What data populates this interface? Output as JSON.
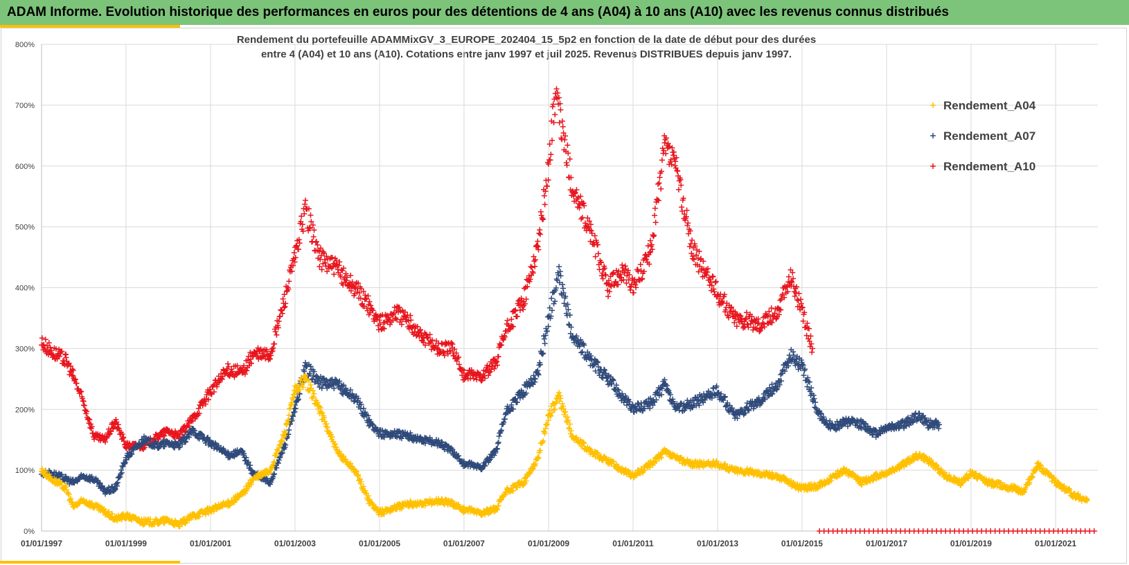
{
  "banner_title": "ADAM Informe. Evolution historique des performances en euros pour des détentions de 4 ans (A04) à 10 ans (A10) avec les revenus connus distribués",
  "colors": {
    "banner": "#7cc47a",
    "accent": "#ffc000",
    "A04": "#ffc000",
    "A07": "#2f4a7a",
    "A10": "#e8141c",
    "grid": "#d9d9d9"
  },
  "chart_data": {
    "type": "scatter",
    "title_line1": "Rendement du portefeuille ADAMMixGV_3_EUROPE_202404_15_5p2  en fonction de la date de début pour des durées",
    "title_line2": "entre 4 (A04) et 10 ans (A10). Cotations  entre janv 1997 et juil 2025. Revenus DISTRIBUES depuis janv 1997.",
    "xlabel": "",
    "ylabel": "",
    "ylim": [
      0,
      800
    ],
    "yticks": [
      0,
      100,
      200,
      300,
      400,
      500,
      600,
      700,
      800
    ],
    "ytick_labels": [
      "0%",
      "100%",
      "200%",
      "300%",
      "400%",
      "500%",
      "600%",
      "700%",
      "800%"
    ],
    "xlim": [
      "1997-01-01",
      "2022-01-01"
    ],
    "xtick_labels": [
      "01/01/1997",
      "01/01/1999",
      "01/01/2001",
      "01/01/2003",
      "01/01/2005",
      "01/01/2007",
      "01/01/2009",
      "01/01/2011",
      "01/01/2013",
      "01/01/2015",
      "01/01/2017",
      "01/01/2019",
      "01/01/2021"
    ],
    "grid": true,
    "legend_position": "top-right",
    "marker": "+",
    "series": [
      {
        "name": "Rendement_A04",
        "color": "#ffc000",
        "points": [
          [
            "1997-01-01",
            100
          ],
          [
            "1997-04-01",
            85
          ],
          [
            "1997-08-01",
            70
          ],
          [
            "1997-10-01",
            40
          ],
          [
            "1998-01-01",
            50
          ],
          [
            "1998-06-01",
            35
          ],
          [
            "1998-10-01",
            20
          ],
          [
            "1999-01-01",
            25
          ],
          [
            "1999-06-01",
            15
          ],
          [
            "1999-10-01",
            15
          ],
          [
            "2000-01-01",
            18
          ],
          [
            "2000-04-01",
            10
          ],
          [
            "2000-08-01",
            25
          ],
          [
            "2001-01-01",
            35
          ],
          [
            "2001-06-01",
            45
          ],
          [
            "2001-10-01",
            60
          ],
          [
            "2002-01-01",
            85
          ],
          [
            "2002-06-01",
            100
          ],
          [
            "2002-10-01",
            160
          ],
          [
            "2003-01-01",
            230
          ],
          [
            "2003-04-01",
            250
          ],
          [
            "2003-08-01",
            200
          ],
          [
            "2004-01-01",
            130
          ],
          [
            "2004-06-01",
            100
          ],
          [
            "2004-10-01",
            50
          ],
          [
            "2005-01-01",
            30
          ],
          [
            "2005-06-01",
            40
          ],
          [
            "2005-10-01",
            45
          ],
          [
            "2006-01-01",
            45
          ],
          [
            "2006-06-01",
            50
          ],
          [
            "2006-10-01",
            45
          ],
          [
            "2007-01-01",
            35
          ],
          [
            "2007-06-01",
            30
          ],
          [
            "2007-10-01",
            35
          ],
          [
            "2008-01-01",
            65
          ],
          [
            "2008-06-01",
            80
          ],
          [
            "2008-10-01",
            120
          ],
          [
            "2009-01-01",
            190
          ],
          [
            "2009-04-01",
            220
          ],
          [
            "2009-08-01",
            155
          ],
          [
            "2010-01-01",
            130
          ],
          [
            "2010-06-01",
            115
          ],
          [
            "2011-01-01",
            90
          ],
          [
            "2011-06-01",
            110
          ],
          [
            "2011-10-01",
            130
          ],
          [
            "2012-01-01",
            120
          ],
          [
            "2012-06-01",
            110
          ],
          [
            "2013-01-01",
            110
          ],
          [
            "2013-06-01",
            100
          ],
          [
            "2014-01-01",
            95
          ],
          [
            "2014-06-01",
            90
          ],
          [
            "2015-01-01",
            70
          ],
          [
            "2015-06-01",
            75
          ],
          [
            "2015-10-01",
            90
          ],
          [
            "2016-01-01",
            100
          ],
          [
            "2016-06-01",
            80
          ],
          [
            "2016-10-01",
            90
          ],
          [
            "2017-01-01",
            95
          ],
          [
            "2017-06-01",
            110
          ],
          [
            "2017-10-01",
            125
          ],
          [
            "2018-01-01",
            115
          ],
          [
            "2018-06-01",
            90
          ],
          [
            "2018-10-01",
            80
          ],
          [
            "2019-01-01",
            95
          ],
          [
            "2019-06-01",
            80
          ],
          [
            "2019-10-01",
            75
          ],
          [
            "2020-01-01",
            70
          ],
          [
            "2020-04-01",
            65
          ],
          [
            "2020-08-01",
            110
          ],
          [
            "2021-01-01",
            80
          ],
          [
            "2021-06-01",
            60
          ],
          [
            "2021-10-01",
            50
          ]
        ]
      },
      {
        "name": "Rendement_A07",
        "color": "#2f4a7a",
        "points": [
          [
            "1997-01-01",
            95
          ],
          [
            "1997-04-01",
            95
          ],
          [
            "1997-08-01",
            85
          ],
          [
            "1997-10-01",
            80
          ],
          [
            "1998-01-01",
            90
          ],
          [
            "1998-04-01",
            85
          ],
          [
            "1998-07-01",
            65
          ],
          [
            "1998-10-01",
            70
          ],
          [
            "1999-01-01",
            120
          ],
          [
            "1999-06-01",
            150
          ],
          [
            "1999-10-01",
            140
          ],
          [
            "2000-01-01",
            145
          ],
          [
            "2000-04-01",
            140
          ],
          [
            "2000-08-01",
            165
          ],
          [
            "2001-01-01",
            145
          ],
          [
            "2001-06-01",
            125
          ],
          [
            "2001-10-01",
            130
          ],
          [
            "2002-01-01",
            95
          ],
          [
            "2002-06-01",
            80
          ],
          [
            "2002-10-01",
            140
          ],
          [
            "2003-01-01",
            200
          ],
          [
            "2003-04-01",
            270
          ],
          [
            "2003-08-01",
            245
          ],
          [
            "2004-01-01",
            240
          ],
          [
            "2004-06-01",
            220
          ],
          [
            "2004-10-01",
            180
          ],
          [
            "2005-01-01",
            160
          ],
          [
            "2005-06-01",
            160
          ],
          [
            "2005-10-01",
            155
          ],
          [
            "2006-01-01",
            150
          ],
          [
            "2006-06-01",
            145
          ],
          [
            "2006-10-01",
            130
          ],
          [
            "2007-01-01",
            110
          ],
          [
            "2007-06-01",
            105
          ],
          [
            "2007-10-01",
            130
          ],
          [
            "2008-01-01",
            195
          ],
          [
            "2008-06-01",
            230
          ],
          [
            "2008-10-01",
            260
          ],
          [
            "2009-01-01",
            350
          ],
          [
            "2009-04-01",
            420
          ],
          [
            "2009-08-01",
            320
          ],
          [
            "2010-01-01",
            280
          ],
          [
            "2010-06-01",
            250
          ],
          [
            "2011-01-01",
            200
          ],
          [
            "2011-06-01",
            210
          ],
          [
            "2011-10-01",
            240
          ],
          [
            "2012-01-01",
            200
          ],
          [
            "2012-06-01",
            210
          ],
          [
            "2013-01-01",
            230
          ],
          [
            "2013-06-01",
            190
          ],
          [
            "2014-01-01",
            215
          ],
          [
            "2014-06-01",
            240
          ],
          [
            "2014-10-01",
            290
          ],
          [
            "2015-01-01",
            270
          ],
          [
            "2015-06-01",
            190
          ],
          [
            "2015-10-01",
            170
          ],
          [
            "2016-01-01",
            180
          ],
          [
            "2016-06-01",
            175
          ],
          [
            "2016-10-01",
            160
          ],
          [
            "2017-01-01",
            170
          ],
          [
            "2017-06-01",
            175
          ],
          [
            "2017-10-01",
            190
          ],
          [
            "2018-01-01",
            175
          ],
          [
            "2018-04-01",
            175
          ]
        ]
      },
      {
        "name": "Rendement_A10",
        "color": "#e8141c",
        "points": [
          [
            "1997-01-01",
            310
          ],
          [
            "1997-04-01",
            295
          ],
          [
            "1997-08-01",
            280
          ],
          [
            "1997-10-01",
            255
          ],
          [
            "1998-01-01",
            210
          ],
          [
            "1998-04-01",
            155
          ],
          [
            "1998-07-01",
            150
          ],
          [
            "1998-10-01",
            180
          ],
          [
            "1999-01-01",
            140
          ],
          [
            "1999-06-01",
            140
          ],
          [
            "1999-10-01",
            155
          ],
          [
            "2000-01-01",
            165
          ],
          [
            "2000-04-01",
            155
          ],
          [
            "2000-08-01",
            185
          ],
          [
            "2001-01-01",
            230
          ],
          [
            "2001-06-01",
            265
          ],
          [
            "2001-10-01",
            260
          ],
          [
            "2002-01-01",
            290
          ],
          [
            "2002-06-01",
            290
          ],
          [
            "2002-10-01",
            380
          ],
          [
            "2003-01-01",
            450
          ],
          [
            "2003-04-01",
            530
          ],
          [
            "2003-08-01",
            450
          ],
          [
            "2004-01-01",
            430
          ],
          [
            "2004-06-01",
            400
          ],
          [
            "2004-10-01",
            370
          ],
          [
            "2005-01-01",
            340
          ],
          [
            "2005-06-01",
            360
          ],
          [
            "2005-10-01",
            340
          ],
          [
            "2006-01-01",
            320
          ],
          [
            "2006-06-01",
            300
          ],
          [
            "2006-10-01",
            300
          ],
          [
            "2007-01-01",
            255
          ],
          [
            "2007-06-01",
            255
          ],
          [
            "2007-10-01",
            275
          ],
          [
            "2008-01-01",
            330
          ],
          [
            "2008-06-01",
            380
          ],
          [
            "2008-10-01",
            470
          ],
          [
            "2009-01-01",
            600
          ],
          [
            "2009-03-01",
            720
          ],
          [
            "2009-08-01",
            560
          ],
          [
            "2010-01-01",
            490
          ],
          [
            "2010-06-01",
            400
          ],
          [
            "2010-10-01",
            430
          ],
          [
            "2011-01-01",
            400
          ],
          [
            "2011-06-01",
            460
          ],
          [
            "2011-10-01",
            630
          ],
          [
            "2012-01-01",
            600
          ],
          [
            "2012-06-01",
            460
          ],
          [
            "2013-01-01",
            390
          ],
          [
            "2013-06-01",
            350
          ],
          [
            "2014-01-01",
            340
          ],
          [
            "2014-06-01",
            360
          ],
          [
            "2014-10-01",
            420
          ],
          [
            "2015-01-01",
            360
          ],
          [
            "2015-04-01",
            300
          ]
        ]
      }
    ],
    "zero_band": {
      "color": "#e8141c",
      "from": "2015-06-01",
      "to": "2022-01-01",
      "value": 0
    }
  }
}
